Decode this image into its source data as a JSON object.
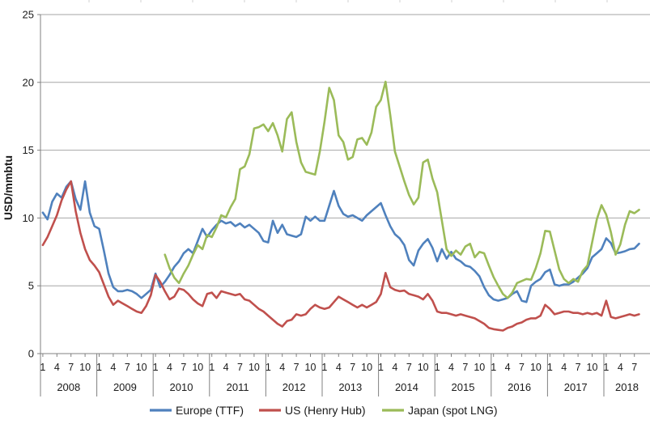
{
  "figure_title": "",
  "chart_data": {
    "type": "line",
    "title": "",
    "xlabel": "",
    "ylabel": "USD/mmbtu",
    "ylim": [
      0,
      25
    ],
    "ytick_step": 5,
    "y_tick_labels": [
      "0",
      "5",
      "10",
      "15",
      "20",
      "25"
    ],
    "grid": true,
    "legend_position": "bottom",
    "x_axis": {
      "unit": "month",
      "start_year": 2008,
      "months_shown": 128,
      "quarter_tick_labels": [
        "1",
        "4",
        "7",
        "10"
      ],
      "year_labels": [
        "2008",
        "2009",
        "2010",
        "2011",
        "2012",
        "2013",
        "2014",
        "2015",
        "2016",
        "2017",
        "2018"
      ]
    },
    "series": [
      {
        "name": "Europe (TTF)",
        "color": "#4F81BD",
        "start_month": 0,
        "monthly_values": [
          10.4,
          9.9,
          11.2,
          11.8,
          11.5,
          12.3,
          12.7,
          11.4,
          10.6,
          12.7,
          10.4,
          9.4,
          9.2,
          7.6,
          5.9,
          4.9,
          4.6,
          4.6,
          4.7,
          4.6,
          4.4,
          4.1,
          4.4,
          4.7,
          5.9,
          4.9,
          5.3,
          5.8,
          6.4,
          6.8,
          7.4,
          7.7,
          7.4,
          8.3,
          9.2,
          8.6,
          9.1,
          9.5,
          9.8,
          9.6,
          9.7,
          9.4,
          9.6,
          9.3,
          9.5,
          9.2,
          8.9,
          8.3,
          8.2,
          9.8,
          8.9,
          9.5,
          8.8,
          8.7,
          8.6,
          8.8,
          10.1,
          9.8,
          10.1,
          9.8,
          9.8,
          10.9,
          12.0,
          10.9,
          10.3,
          10.1,
          10.2,
          10.0,
          9.8,
          10.2,
          10.5,
          10.8,
          11.1,
          10.2,
          9.4,
          8.8,
          8.5,
          8.0,
          6.9,
          6.5,
          7.6,
          8.1,
          8.45,
          7.8,
          6.8,
          7.7,
          7.0,
          7.5,
          7.0,
          6.8,
          6.5,
          6.4,
          6.1,
          5.7,
          4.9,
          4.3,
          4.0,
          3.9,
          4.0,
          4.1,
          4.4,
          4.6,
          3.9,
          3.8,
          5.0,
          5.3,
          5.5,
          6.0,
          6.2,
          5.1,
          5.0,
          5.1,
          5.1,
          5.3,
          5.6,
          5.9,
          6.3,
          7.1,
          7.4,
          7.7,
          8.5,
          8.15,
          7.4,
          7.45,
          7.55,
          7.7,
          7.75,
          8.1
        ]
      },
      {
        "name": "US (Henry Hub)",
        "color": "#C0504D",
        "start_month": 0,
        "monthly_values": [
          8.0,
          8.6,
          9.4,
          10.2,
          11.3,
          12.1,
          12.7,
          10.5,
          8.9,
          7.7,
          6.9,
          6.5,
          6.0,
          5.1,
          4.2,
          3.6,
          3.9,
          3.7,
          3.5,
          3.3,
          3.1,
          3.0,
          3.5,
          4.3,
          5.8,
          5.3,
          4.6,
          4.0,
          4.2,
          4.8,
          4.7,
          4.4,
          4.0,
          3.7,
          3.5,
          4.4,
          4.5,
          4.1,
          4.6,
          4.5,
          4.4,
          4.3,
          4.4,
          4.0,
          3.9,
          3.6,
          3.3,
          3.1,
          2.8,
          2.5,
          2.2,
          2.0,
          2.4,
          2.5,
          2.9,
          2.8,
          2.9,
          3.3,
          3.6,
          3.4,
          3.3,
          3.4,
          3.8,
          4.2,
          4.0,
          3.8,
          3.6,
          3.4,
          3.6,
          3.4,
          3.6,
          3.8,
          4.4,
          5.95,
          4.9,
          4.7,
          4.6,
          4.65,
          4.4,
          4.3,
          4.2,
          4.0,
          4.4,
          3.9,
          3.1,
          3.0,
          3.0,
          2.9,
          2.8,
          2.9,
          2.8,
          2.7,
          2.6,
          2.4,
          2.2,
          1.9,
          1.8,
          1.75,
          1.7,
          1.9,
          2.0,
          2.2,
          2.3,
          2.5,
          2.6,
          2.6,
          2.8,
          3.6,
          3.3,
          2.9,
          3.0,
          3.1,
          3.1,
          3.0,
          3.0,
          2.9,
          3.0,
          2.9,
          3.0,
          2.8,
          3.9,
          2.7,
          2.6,
          2.7,
          2.8,
          2.9,
          2.8,
          2.9
        ]
      },
      {
        "name": "Japan (spot LNG)",
        "color": "#9BBB59",
        "start_month": 26,
        "monthly_values": [
          7.3,
          6.3,
          5.6,
          5.2,
          5.9,
          6.5,
          7.3,
          8.0,
          7.7,
          8.75,
          8.6,
          9.3,
          10.2,
          10.05,
          10.8,
          11.4,
          13.6,
          13.8,
          14.7,
          16.6,
          16.7,
          16.9,
          16.4,
          17.0,
          16.1,
          14.9,
          17.3,
          17.8,
          15.6,
          14.1,
          13.4,
          13.3,
          13.2,
          14.9,
          17.1,
          19.6,
          18.7,
          16.1,
          15.6,
          14.3,
          14.5,
          15.8,
          15.9,
          15.4,
          16.3,
          18.2,
          18.7,
          20.05,
          17.6,
          14.9,
          13.8,
          12.7,
          11.7,
          11.0,
          11.5,
          14.1,
          14.3,
          12.9,
          11.9,
          9.8,
          7.7,
          7.2,
          7.6,
          7.3,
          7.9,
          8.1,
          7.1,
          7.5,
          7.4,
          6.5,
          5.65,
          5.0,
          4.4,
          4.1,
          4.5,
          5.2,
          5.35,
          5.5,
          5.45,
          6.3,
          7.4,
          9.05,
          9.0,
          7.6,
          6.2,
          5.5,
          5.2,
          5.5,
          5.3,
          6.1,
          6.5,
          8.2,
          9.9,
          10.95,
          10.25,
          8.95,
          7.3,
          8.05,
          9.5,
          10.5,
          10.35,
          10.6
        ]
      }
    ]
  },
  "legend": {
    "items": [
      {
        "label": "Europe (TTF)",
        "color": "#4F81BD"
      },
      {
        "label": "US (Henry Hub)",
        "color": "#C0504D"
      },
      {
        "label": "Japan (spot LNG)",
        "color": "#9BBB59"
      }
    ]
  },
  "style": {
    "gridline_color": "#A6A6A6",
    "axis_color": "#808080",
    "top_tick_color": "#d0d0d0",
    "label_color": "#1a1a1a"
  }
}
